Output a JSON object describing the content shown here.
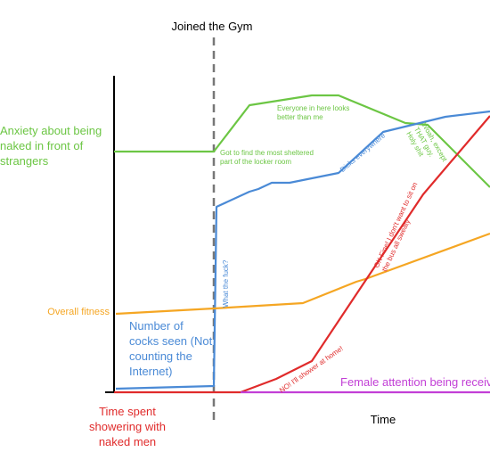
{
  "chart_data": {
    "type": "line",
    "xlabel": "Time",
    "event": {
      "label": "Joined the Gym",
      "x": 112
    },
    "xlim": [
      0,
      422
    ],
    "ylim": [
      0,
      355
    ],
    "series": [
      {
        "name": "Anxiety about being naked in front of strangers",
        "color": "#6cc644",
        "x": [
          0,
          112,
          152,
          222,
          252,
          327,
          352,
          422
        ],
        "values": [
          270,
          270,
          322,
          333,
          333,
          302,
          300,
          230
        ]
      },
      {
        "name": "Number of cocks seen (Not counting the Internet)",
        "color": "#4a8ad6",
        "x": [
          2,
          112,
          115,
          152,
          162,
          177,
          197,
          252,
          302,
          372,
          422
        ],
        "values": [
          4,
          7,
          208,
          225,
          228,
          235,
          235,
          246,
          292,
          309,
          315
        ]
      },
      {
        "name": "Overall fitness",
        "color": "#f5a623",
        "x": [
          2,
          112,
          212,
          272,
          282,
          422
        ],
        "values": [
          88,
          94,
          100,
          124,
          127,
          178
        ]
      },
      {
        "name": "Time spent showering with naked men",
        "color": "#e02b2b",
        "x": [
          0,
          142,
          182,
          222,
          272,
          347,
          422
        ],
        "values": [
          0,
          0,
          15,
          35,
          110,
          222,
          310
        ]
      },
      {
        "name": "Female attention being received",
        "color": "#c23fd6",
        "x": [
          142,
          422
        ],
        "values": [
          0,
          0
        ]
      }
    ],
    "annotations": [
      {
        "text": "Got to find the most sheltered part of the locker room",
        "series": 0
      },
      {
        "text": "Everyone in here looks better than me",
        "series": 0
      },
      {
        "text": "Woah, except THAT guy. Holy shit",
        "series": 0
      },
      {
        "text": "Dicks everywhere",
        "series": 1
      },
      {
        "text": "What the fuck?",
        "series": 1
      },
      {
        "text": "OK Fine! I don't want to sit on the bus all sweaty",
        "series": 3
      },
      {
        "text": "NO! I'll shower at home!",
        "series": 3
      }
    ]
  }
}
